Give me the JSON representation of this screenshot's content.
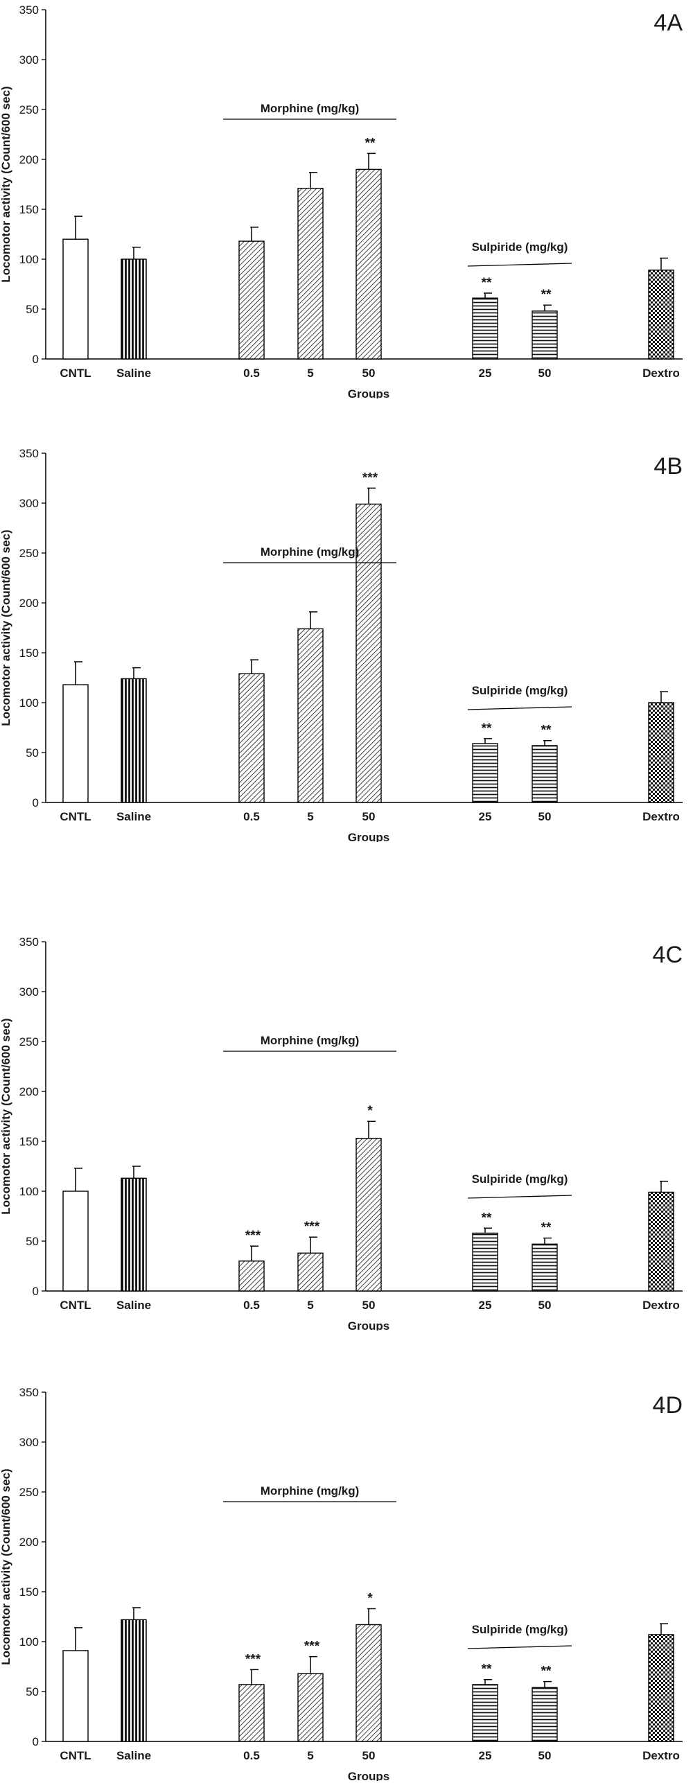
{
  "chart_data": [
    {
      "type": "bar",
      "title": "4A",
      "xlabel": "Groups",
      "ylabel": "Locomotor activity (Count/600 sec)",
      "ylim": [
        0,
        350
      ],
      "yticks": [
        0,
        50,
        100,
        150,
        200,
        250,
        300,
        350
      ],
      "categories": [
        "CNTL",
        "Saline",
        "0.5",
        "5",
        "50",
        "25",
        "50",
        "Dextro"
      ],
      "values": [
        120,
        100,
        118,
        171,
        190,
        61,
        48,
        89
      ],
      "errors": [
        23,
        12,
        14,
        16,
        16,
        5,
        6,
        12
      ],
      "significance": [
        "",
        "",
        "",
        "",
        "**",
        "**",
        "**",
        ""
      ],
      "groups": [
        {
          "label": "Morphine (mg/kg)",
          "categories": [
            2,
            3,
            4
          ]
        },
        {
          "label": "Sulpiride (mg/kg)",
          "categories": [
            5,
            6
          ]
        }
      ],
      "patterns": [
        "none",
        "vertical",
        "diagonal",
        "diagonal",
        "diagonal",
        "horizontal",
        "horizontal",
        "checker"
      ]
    },
    {
      "type": "bar",
      "title": "4B",
      "xlabel": "Groups",
      "ylabel": "Locomotor activity (Count/600 sec)",
      "ylim": [
        0,
        350
      ],
      "yticks": [
        0,
        50,
        100,
        150,
        200,
        250,
        300,
        350
      ],
      "categories": [
        "CNTL",
        "Saline",
        "0.5",
        "5",
        "50",
        "25",
        "50",
        "Dextro"
      ],
      "values": [
        118,
        124,
        129,
        174,
        299,
        59,
        57,
        100
      ],
      "errors": [
        23,
        11,
        14,
        17,
        16,
        5,
        5,
        11
      ],
      "significance": [
        "",
        "",
        "",
        "",
        "***",
        "**",
        "**",
        ""
      ],
      "groups": [
        {
          "label": "Morphine (mg/kg)",
          "categories": [
            2,
            3,
            4
          ]
        },
        {
          "label": "Sulpiride (mg/kg)",
          "categories": [
            5,
            6
          ]
        }
      ],
      "patterns": [
        "none",
        "vertical",
        "diagonal",
        "diagonal",
        "diagonal",
        "horizontal",
        "horizontal",
        "checker"
      ]
    },
    {
      "type": "bar",
      "title": "4C",
      "xlabel": "Groups",
      "ylabel": "Locomotor activity (Count/600 sec)",
      "ylim": [
        0,
        350
      ],
      "yticks": [
        0,
        50,
        100,
        150,
        200,
        250,
        300,
        350
      ],
      "categories": [
        "CNTL",
        "Saline",
        "0.5",
        "5",
        "50",
        "25",
        "50",
        "Dextro"
      ],
      "values": [
        100,
        113,
        30,
        38,
        153,
        58,
        47,
        99
      ],
      "errors": [
        23,
        12,
        15,
        16,
        17,
        5,
        6,
        11
      ],
      "significance": [
        "",
        "",
        "***",
        "***",
        "*",
        "**",
        "**",
        ""
      ],
      "groups": [
        {
          "label": "Morphine (mg/kg)",
          "categories": [
            2,
            3,
            4
          ]
        },
        {
          "label": "Sulpiride (mg/kg)",
          "categories": [
            5,
            6
          ]
        }
      ],
      "patterns": [
        "none",
        "vertical",
        "diagonal",
        "diagonal",
        "diagonal",
        "horizontal",
        "horizontal",
        "checker"
      ]
    },
    {
      "type": "bar",
      "title": "4D",
      "xlabel": "Groups",
      "ylabel": "Locomotor activity (Count/600 sec)",
      "ylim": [
        0,
        350
      ],
      "yticks": [
        0,
        50,
        100,
        150,
        200,
        250,
        300,
        350
      ],
      "categories": [
        "CNTL",
        "Saline",
        "0.5",
        "5",
        "50",
        "25",
        "50",
        "Dextro"
      ],
      "values": [
        91,
        122,
        57,
        68,
        117,
        57,
        54,
        107
      ],
      "errors": [
        23,
        12,
        15,
        17,
        16,
        5,
        6,
        11
      ],
      "significance": [
        "",
        "",
        "***",
        "***",
        "*",
        "**",
        "**",
        ""
      ],
      "groups": [
        {
          "label": "Morphine (mg/kg)",
          "categories": [
            2,
            3,
            4
          ]
        },
        {
          "label": "Sulpiride (mg/kg)",
          "categories": [
            5,
            6
          ]
        }
      ],
      "patterns": [
        "none",
        "vertical",
        "diagonal",
        "diagonal",
        "diagonal",
        "horizontal",
        "horizontal",
        "checker"
      ]
    }
  ]
}
